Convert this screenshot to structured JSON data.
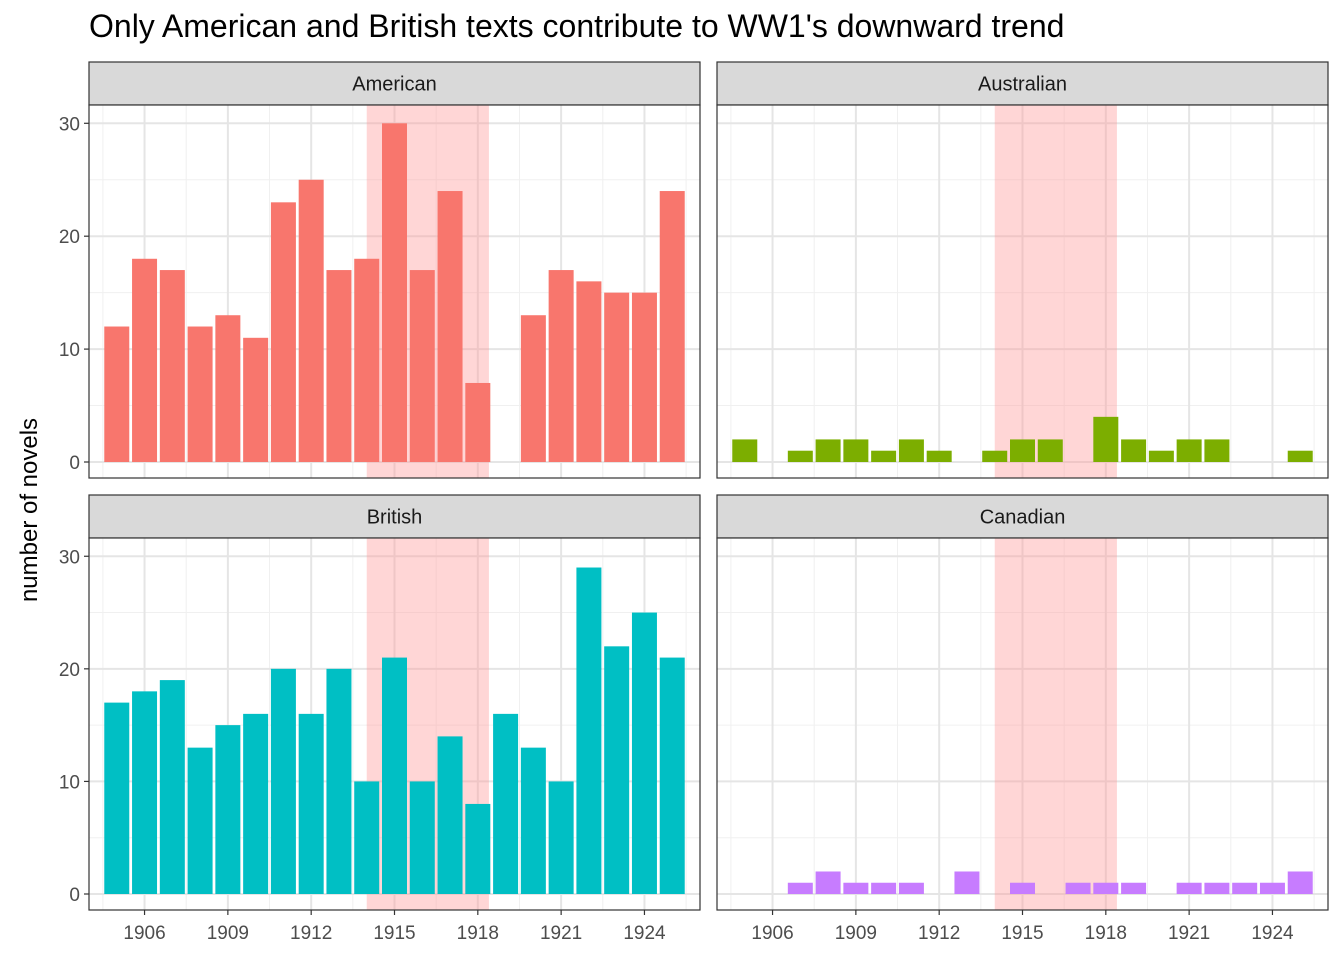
{
  "chart_data": {
    "type": "bar",
    "title": "Only American and British texts contribute to WW1's downward trend",
    "xlabel": "",
    "ylabel": "number of novels",
    "x_ticks": [
      1906,
      1909,
      1912,
      1915,
      1918,
      1921,
      1924
    ],
    "y_ticks": [
      0,
      10,
      20,
      30
    ],
    "xlim": [
      1904,
      1926
    ],
    "ylim": [
      0,
      31
    ],
    "highlight_band": {
      "from": 1914,
      "to": 1918.4,
      "color": "#ff9999"
    },
    "grid": true,
    "panels": [
      {
        "name": "American",
        "color": "#F8766D",
        "x": [
          1905,
          1906,
          1907,
          1908,
          1909,
          1910,
          1911,
          1912,
          1913,
          1914,
          1915,
          1916,
          1917,
          1918,
          1920,
          1921,
          1922,
          1923,
          1924,
          1925
        ],
        "values": [
          12,
          18,
          17,
          12,
          13,
          11,
          23,
          25,
          17,
          18,
          30,
          17,
          24,
          7,
          13,
          17,
          16,
          15,
          15,
          24
        ]
      },
      {
        "name": "Australian",
        "color": "#7CAE00",
        "x": [
          1905,
          1907,
          1908,
          1909,
          1910,
          1911,
          1912,
          1914,
          1915,
          1916,
          1918,
          1919,
          1920,
          1921,
          1922,
          1925
        ],
        "values": [
          2,
          1,
          2,
          2,
          1,
          2,
          1,
          1,
          2,
          2,
          4,
          2,
          1,
          2,
          2,
          1
        ]
      },
      {
        "name": "British",
        "color": "#00BFC4",
        "x": [
          1905,
          1906,
          1907,
          1908,
          1909,
          1910,
          1911,
          1912,
          1913,
          1914,
          1915,
          1916,
          1917,
          1918,
          1919,
          1920,
          1921,
          1922,
          1923,
          1924,
          1925
        ],
        "values": [
          17,
          18,
          19,
          13,
          15,
          16,
          20,
          16,
          20,
          10,
          21,
          10,
          14,
          8,
          16,
          13,
          10,
          29,
          22,
          25,
          21
        ]
      },
      {
        "name": "Canadian",
        "color": "#C77CFF",
        "x": [
          1907,
          1908,
          1909,
          1910,
          1911,
          1913,
          1915,
          1917,
          1918,
          1919,
          1921,
          1922,
          1923,
          1924,
          1925
        ],
        "values": [
          1,
          2,
          1,
          1,
          1,
          2,
          1,
          1,
          1,
          1,
          1,
          1,
          1,
          1,
          2
        ]
      }
    ]
  }
}
